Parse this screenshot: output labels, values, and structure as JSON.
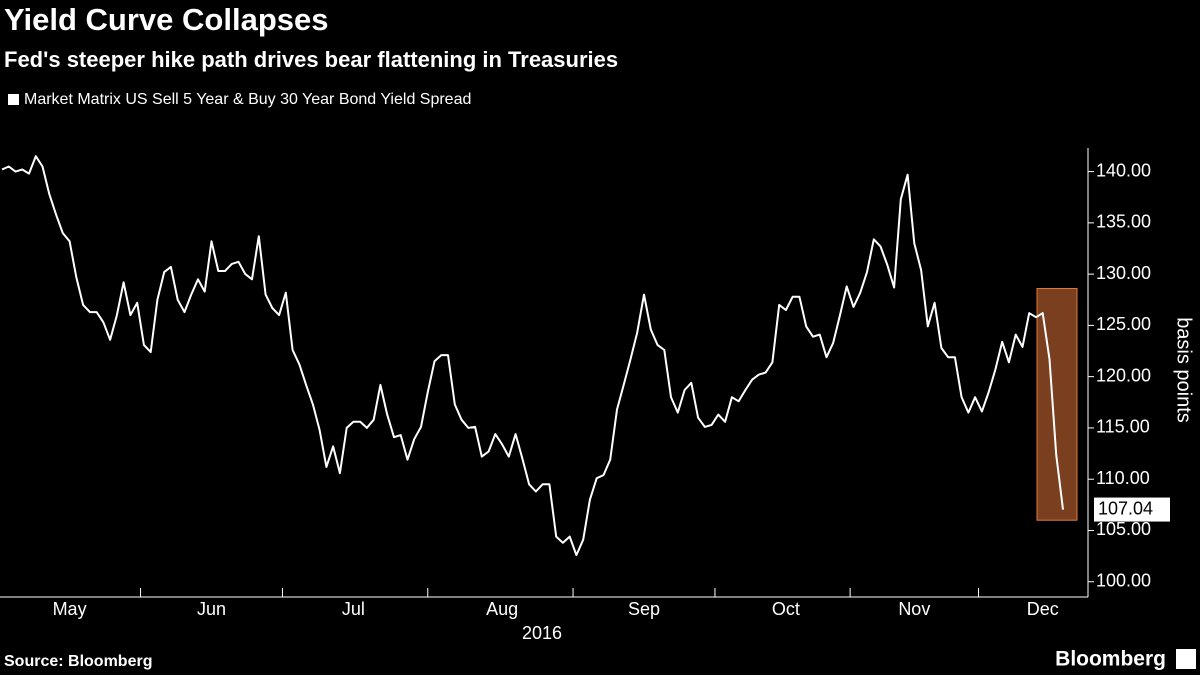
{
  "chart_data": {
    "type": "line",
    "title": "Yield Curve Collapses",
    "subtitle": "Fed's steeper hike path drives bear flattening in Treasuries",
    "x_label": "2016",
    "y_label": "basis points",
    "source": "Source: Bloomberg",
    "brand": "Bloomberg",
    "categories": [
      null,
      null,
      null,
      null,
      null,
      null,
      null,
      null,
      null,
      null,
      "May",
      null,
      null,
      null,
      null,
      null,
      null,
      null,
      null,
      null,
      null,
      null,
      null,
      null,
      null,
      null,
      null,
      null,
      null,
      null,
      null,
      "Jun",
      null,
      null,
      null,
      null,
      null,
      null,
      null,
      null,
      null,
      null,
      null,
      null,
      null,
      null,
      null,
      null,
      null,
      null,
      null,
      null,
      "Jul",
      null,
      null,
      null,
      null,
      null,
      null,
      null,
      null,
      null,
      null,
      null,
      null,
      null,
      null,
      null,
      null,
      null,
      null,
      null,
      null,
      null,
      "Aug",
      null,
      null,
      null,
      null,
      null,
      null,
      null,
      null,
      null,
      null,
      null,
      null,
      null,
      null,
      null,
      null,
      null,
      null,
      null,
      null,
      "Sep",
      null,
      null,
      null,
      null,
      null,
      null,
      null,
      null,
      null,
      null,
      null,
      null,
      null,
      null,
      null,
      null,
      null,
      null,
      null,
      null,
      "Oct",
      null,
      null,
      null,
      null,
      null,
      null,
      null,
      null,
      null,
      null,
      null,
      null,
      null,
      null,
      null,
      null,
      null,
      null,
      "Nov",
      null,
      null,
      null,
      null,
      null,
      null,
      null,
      null,
      null,
      null,
      null,
      null,
      null,
      null,
      null,
      null,
      null,
      null,
      "Dec",
      null,
      null,
      null
    ],
    "series": [
      {
        "name": "Market Matrix US Sell 5 Year & Buy 30 Year Bond Yield Spread",
        "color": "#ffffff",
        "values": [
          140.2,
          140.5,
          140,
          140.2,
          139.8,
          141.5,
          140.5,
          137.8,
          135.8,
          134,
          133.2,
          129.7,
          127,
          126.3,
          126.3,
          125.3,
          123.6,
          126,
          129.2,
          126,
          127.2,
          123.1,
          122.4,
          127.5,
          130.2,
          130.7,
          127.5,
          126.3,
          128,
          129.5,
          128.3,
          133.2,
          130.3,
          130.3,
          131,
          131.2,
          130,
          129.5,
          133.7,
          128,
          126.7,
          126,
          128.2,
          122.6,
          121.2,
          119.2,
          117.3,
          114.8,
          111.2,
          113.2,
          110.6,
          115,
          115.6,
          115.6,
          115,
          115.8,
          119.2,
          116.3,
          114.1,
          114.3,
          111.9,
          113.9,
          115.1,
          118.5,
          121.5,
          122.1,
          122.1,
          117.3,
          115.8,
          115,
          115.1,
          112.2,
          112.7,
          114.4,
          113.4,
          112.2,
          114.4,
          112,
          109.5,
          108.8,
          109.5,
          109.5,
          104.4,
          103.8,
          104.4,
          102.6,
          104.1,
          108,
          110.1,
          110.4,
          111.9,
          116.8,
          119.2,
          121.7,
          124.3,
          128,
          124.6,
          123.1,
          122.6,
          118,
          116.5,
          118.7,
          119.4,
          116,
          115.1,
          115.3,
          116.3,
          115.6,
          118,
          117.6,
          118.7,
          119.7,
          120.2,
          120.4,
          121.4,
          127,
          126.5,
          127.8,
          127.8,
          124.9,
          123.9,
          124.1,
          121.9,
          123.3,
          126,
          128.8,
          126.8,
          128.2,
          130.2,
          133.4,
          132.7,
          130.9,
          128.7,
          137.3,
          139.7,
          133,
          130.4,
          124.9,
          127.2,
          122.8,
          121.9,
          121.9,
          118,
          116.5,
          118,
          116.6,
          118.5,
          120.7,
          123.4,
          121.4,
          124.1,
          122.9,
          126.2,
          125.8,
          126.2,
          121.7,
          112.4,
          107.04
        ]
      }
    ],
    "last_value_label": "107.04",
    "highlight_range": [
      106,
      128.6
    ],
    "highlight_color": "#7a3f1f",
    "ylim": [
      99,
      142.3
    ],
    "yticks": [
      {
        "value": 100,
        "label": "100.00"
      },
      {
        "value": 105,
        "label": "105.00"
      },
      {
        "value": 110,
        "label": "110.00"
      },
      {
        "value": 115,
        "label": "115.00"
      },
      {
        "value": 120,
        "label": "120.00"
      },
      {
        "value": 125,
        "label": "125.00"
      },
      {
        "value": 130,
        "label": "130.00"
      },
      {
        "value": 135,
        "label": "135.00"
      },
      {
        "value": 140,
        "label": "140.00"
      }
    ],
    "grid": false
  }
}
